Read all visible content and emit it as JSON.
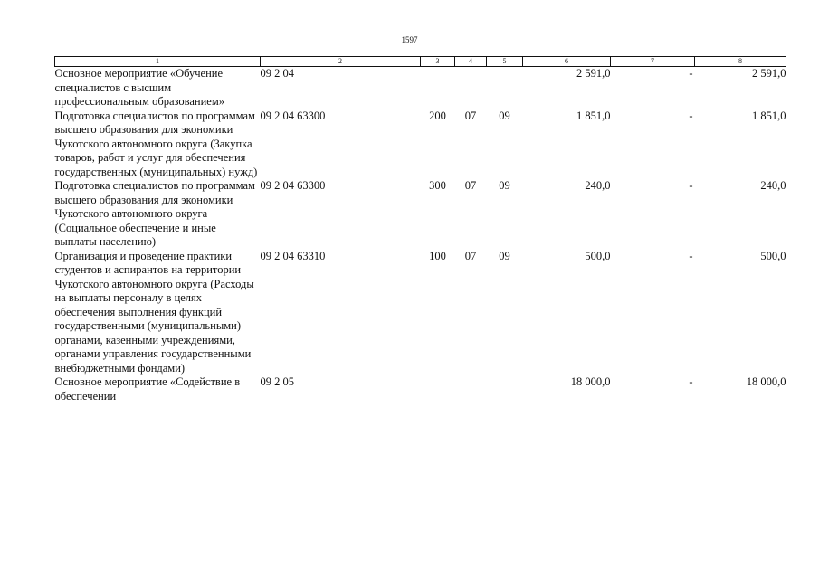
{
  "page_number": "1597",
  "header": [
    "1",
    "2",
    "3",
    "4",
    "5",
    "6",
    "7",
    "8"
  ],
  "rows": [
    {
      "name": "Основное мероприятие «Обучение специалистов с высшим профессиональным образованием»",
      "code": "09 2 04",
      "c3": "",
      "c4": "",
      "c5": "",
      "c6": "2 591,0",
      "c7": "-",
      "c8": "2 591,0"
    },
    {
      "name": "Подготовка специалистов по программам высшего образования для экономики Чукотского автономного округа (Закупка товаров, работ и услуг для обеспечения государственных (муниципальных) нужд)",
      "code": "09 2 04 63300",
      "c3": "200",
      "c4": "07",
      "c5": "09",
      "c6": "1 851,0",
      "c7": "-",
      "c8": "1 851,0"
    },
    {
      "name": "Подготовка специалистов по программам высшего образования для экономики Чукотского автономного округа (Социальное обеспечение и иные выплаты населению)",
      "code": "09 2 04 63300",
      "c3": "300",
      "c4": "07",
      "c5": "09",
      "c6": "240,0",
      "c7": "-",
      "c8": "240,0"
    },
    {
      "name": "Организация и проведение практики студентов и аспирантов на территории Чукотского автономного округа (Расходы на выплаты персоналу в целях обеспечения выполнения функций государственными (муниципальными) органами, казенными учреждениями, органами управления государственными внебюджетными фондами)",
      "code": "09 2 04 63310",
      "c3": "100",
      "c4": "07",
      "c5": "09",
      "c6": "500,0",
      "c7": "-",
      "c8": "500,0"
    },
    {
      "name": "Основное мероприятие «Содействие в обеспечении",
      "code": "09 2 05",
      "c3": "",
      "c4": "",
      "c5": "",
      "c6": "18 000,0",
      "c7": "-",
      "c8": "18 000,0"
    }
  ]
}
